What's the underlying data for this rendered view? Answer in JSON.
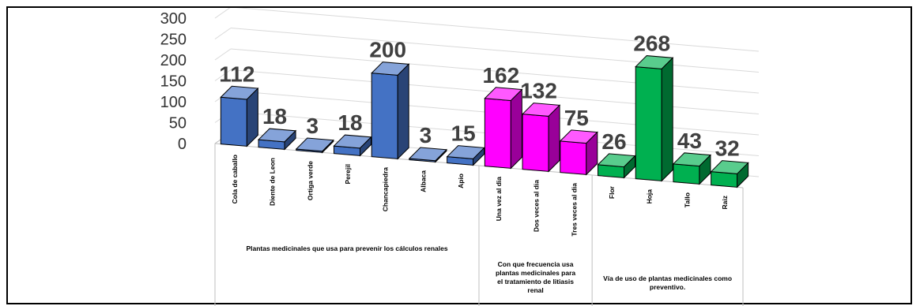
{
  "chart_data": {
    "type": "bar",
    "title": "",
    "ylim": [
      0,
      300
    ],
    "yticks": [
      "0",
      "50",
      "100",
      "150",
      "200",
      "250",
      "300"
    ],
    "grid": true,
    "legend": "none",
    "groups": [
      {
        "name": "Plantas medicinales que usa para prevenir los cálculos renales",
        "color": "#4472C4",
        "categories": [
          "Cola de caballo",
          "Diente de Leon",
          "Ortiga verde",
          "Perejil",
          "Chancapiedra",
          "Albaca",
          "Apio"
        ],
        "values": [
          112,
          18,
          3,
          18,
          200,
          3,
          15
        ],
        "labels": [
          "112",
          "18",
          "3",
          "18",
          "200",
          "3",
          "15"
        ]
      },
      {
        "name": "Con que frecuencia usa plantas medicinales para el tratamiento de litiasis renal",
        "color": "#FF00FF",
        "categories": [
          "Una vez al dia",
          "Dos veces al dia",
          "Tres veces al dia"
        ],
        "values": [
          162,
          132,
          75
        ],
        "labels": [
          "162",
          "132",
          "75"
        ]
      },
      {
        "name": "Vía de uso de plantas medicinales como preventivo.",
        "color": "#00B050",
        "categories": [
          "Flor",
          "Hoja",
          "Tallo",
          "Raiz"
        ],
        "values": [
          26,
          268,
          43,
          32
        ],
        "labels": [
          "26",
          "268",
          "43",
          "32"
        ]
      }
    ]
  }
}
